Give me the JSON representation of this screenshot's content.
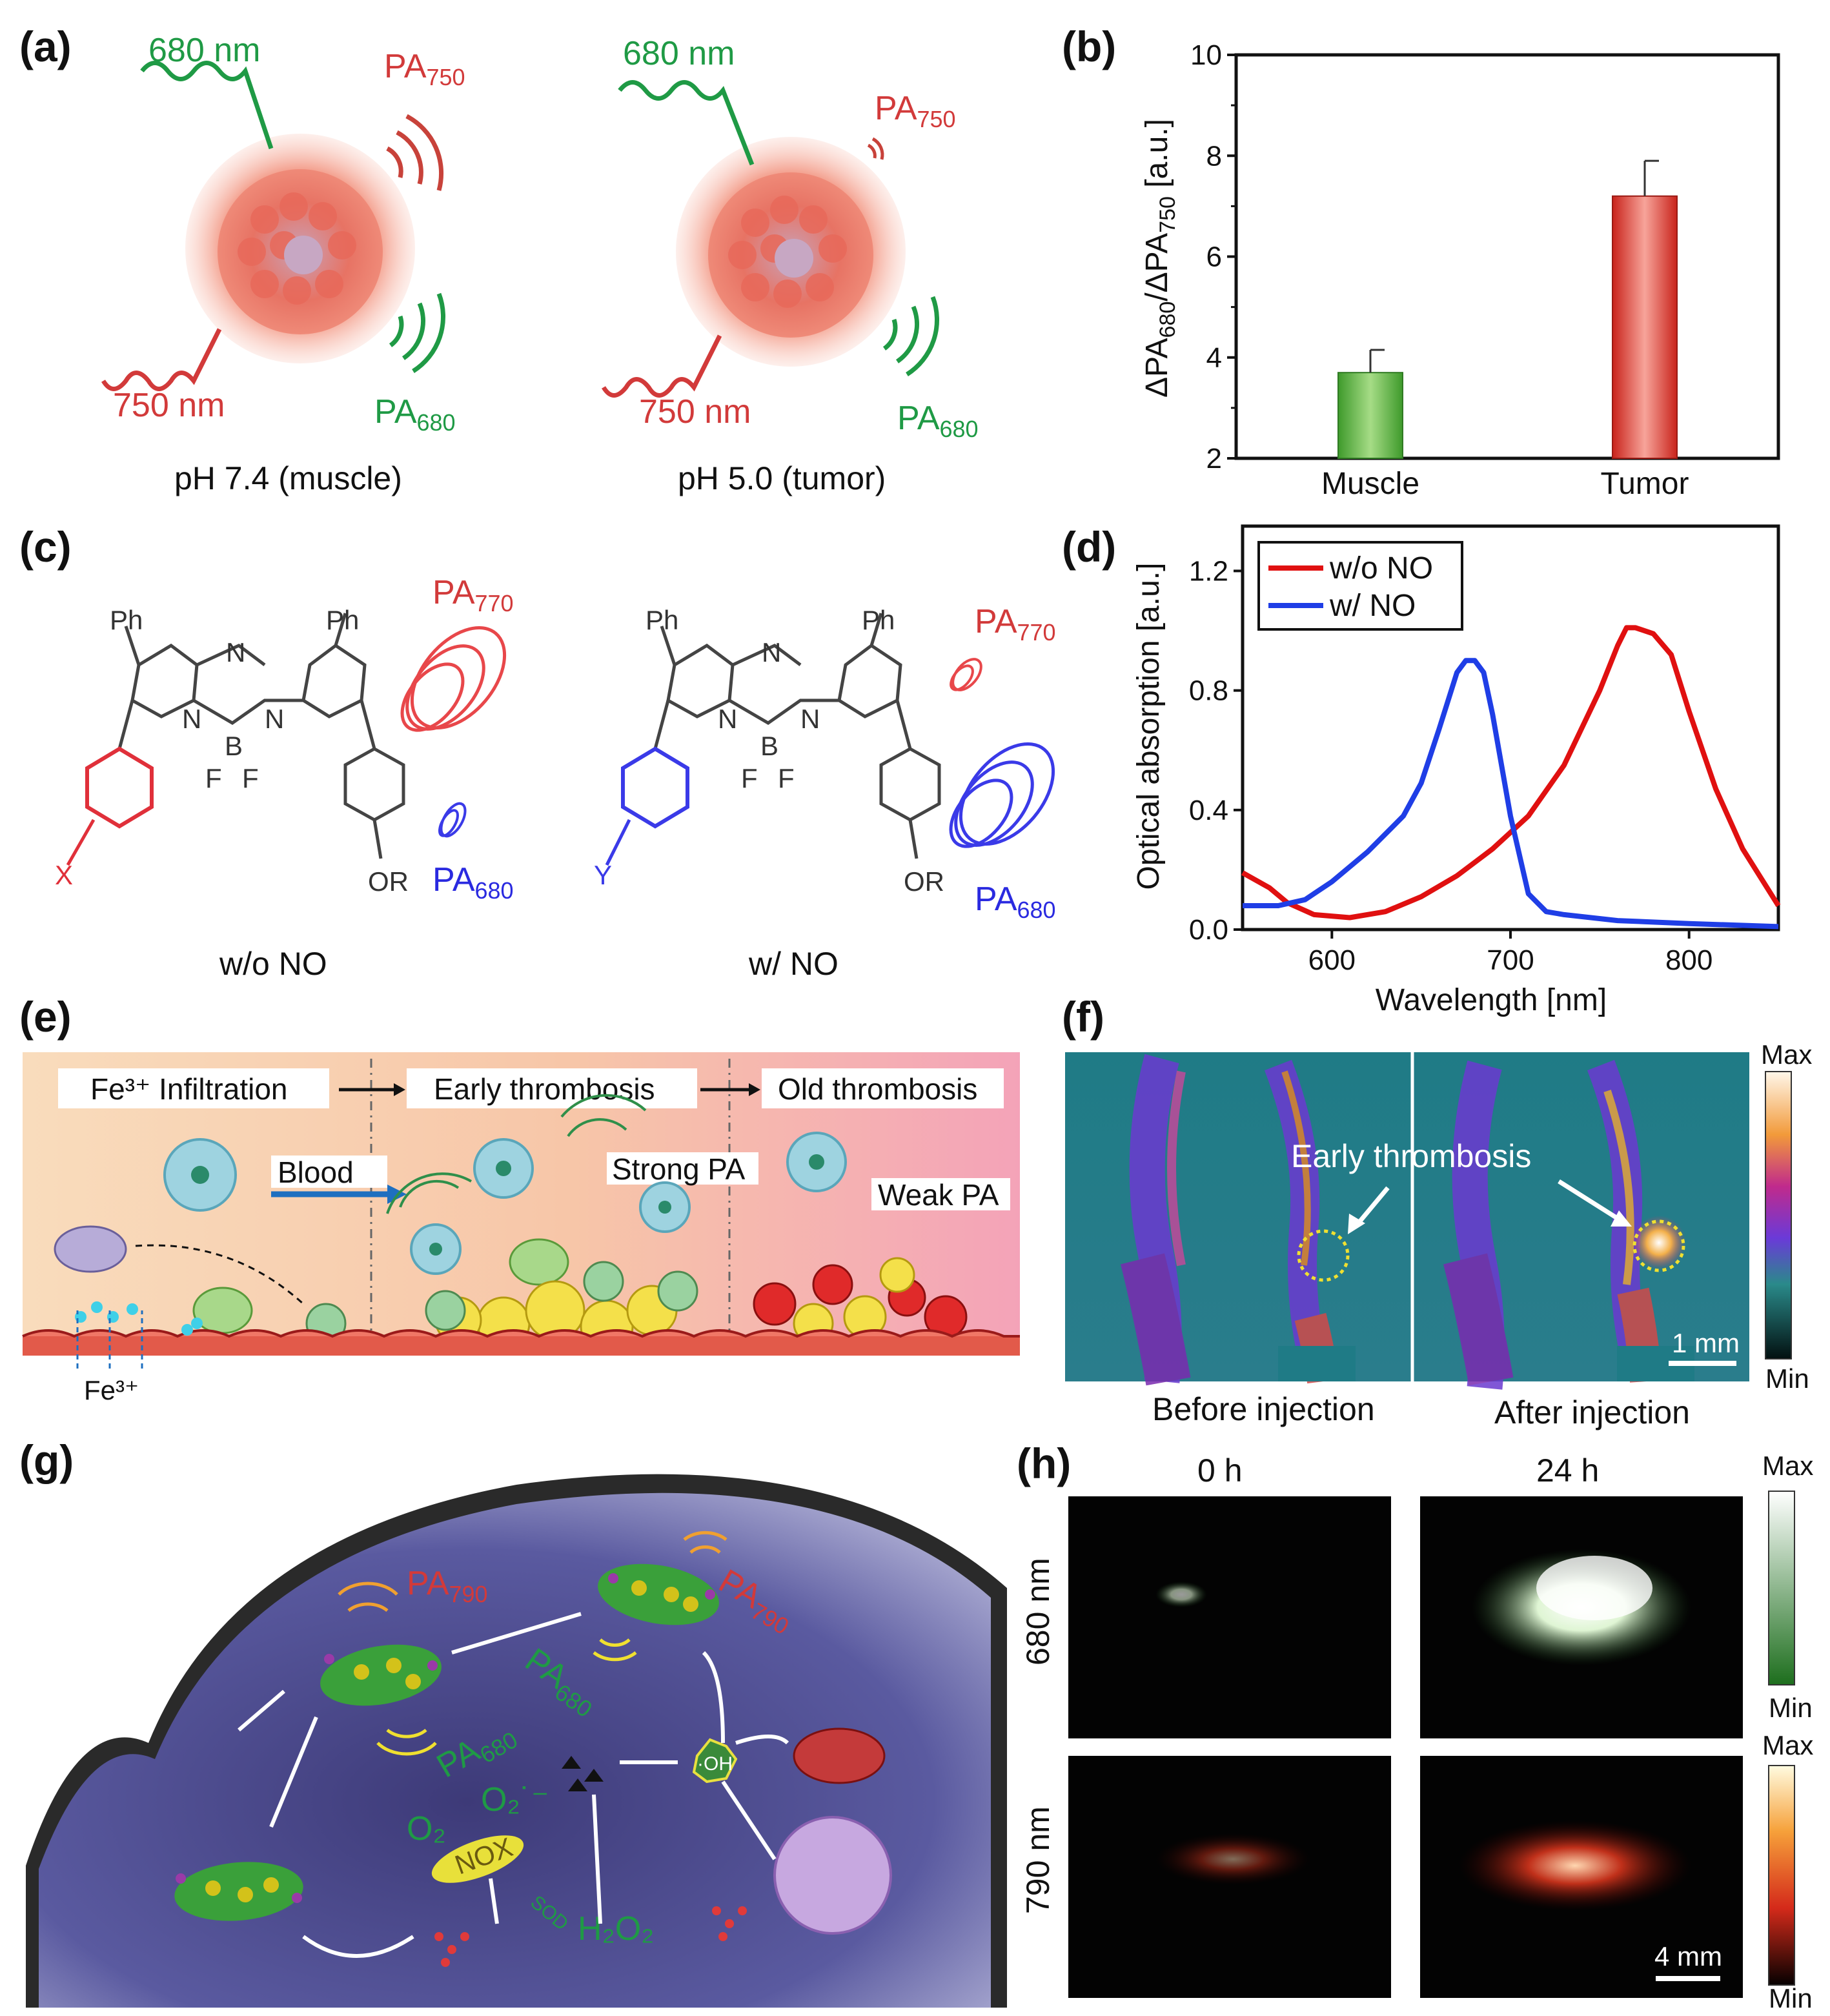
{
  "panels": {
    "a": {
      "label": "(a)",
      "left": {
        "ex": "680 nm",
        "ex2": "750 nm",
        "pa_top": "PA",
        "pa_top_sub": "750",
        "pa_bot": "PA",
        "pa_bot_sub": "680",
        "caption": "pH 7.4 (muscle)"
      },
      "right": {
        "ex": "680 nm",
        "ex2": "750 nm",
        "pa_top": "PA",
        "pa_top_sub": "750",
        "pa_bot": "PA",
        "pa_bot_sub": "680",
        "caption": "pH 5.0 (tumor)"
      }
    },
    "b": {
      "label": "(b)"
    },
    "c": {
      "label": "(c)",
      "left": {
        "pa_top": "PA",
        "pa_top_sub": "770",
        "pa_bot": "PA",
        "pa_bot_sub": "680",
        "caption": "w/o NO",
        "sub": "X"
      },
      "right": {
        "pa_top": "PA",
        "pa_top_sub": "770",
        "pa_bot": "PA",
        "pa_bot_sub": "680",
        "caption": "w/ NO",
        "sub": "Y"
      },
      "atoms": {
        "ph": "Ph",
        "n": "N",
        "b": "B",
        "f": "F",
        "or": "OR"
      }
    },
    "d": {
      "label": "(d)"
    },
    "e": {
      "label": "(e)",
      "stage1": "Fe³⁺ Infiltration",
      "stage2": "Early thrombosis",
      "stage3": "Old thrombosis",
      "blood": "Blood",
      "strong": "Strong PA",
      "weak": "Weak PA",
      "fe": "Fe³⁺"
    },
    "f": {
      "label": "(f)",
      "annotation": "Early thrombosis",
      "before": "Before injection",
      "after": "After injection",
      "scale": "1 mm",
      "cmax": "Max",
      "cmin": "Min"
    },
    "g": {
      "label": "(g)",
      "pa790a": "PA",
      "pa790a_sub": "790",
      "pa790b": "PA",
      "pa790b_sub": "790",
      "pa680a": "PA",
      "pa680a_sub": "680",
      "pa680b": "PA",
      "pa680b_sub": "680",
      "o2": "O₂",
      "o2m": "O₂˙⁻",
      "nox": "NOX",
      "sod": "SOD",
      "h2o2": "H₂O₂",
      "oh": "·OH"
    },
    "h": {
      "label": "(h)",
      "t0": "0 h",
      "t24": "24 h",
      "row1": "680 nm",
      "row2": "790 nm",
      "scale": "4 mm",
      "max1": "Max",
      "min1": "Min",
      "max2": "Max",
      "min2": "Min"
    }
  },
  "chart_data": [
    {
      "type": "bar",
      "panel": "b",
      "categories": [
        "Muscle",
        "Tumor"
      ],
      "values": [
        3.7,
        7.2
      ],
      "errors": [
        0.45,
        0.7
      ],
      "colors": [
        "#5cb33c",
        "#e0352b"
      ],
      "ylabel": "ΔPA680/ΔPA750 [a.u.]",
      "ylim": [
        2,
        10
      ],
      "yticks": [
        2,
        4,
        6,
        8,
        10
      ]
    },
    {
      "type": "line",
      "panel": "d",
      "xlabel": "Wavelength [nm]",
      "ylabel": "Optical absorption [a.u.]",
      "xlim": [
        550,
        850
      ],
      "ylim": [
        0,
        1.35
      ],
      "xticks": [
        600,
        700,
        800
      ],
      "yticks": [
        0.0,
        0.4,
        0.8,
        1.2
      ],
      "ytick_labels": [
        "0.0",
        "0.4",
        "0.8",
        "1.2"
      ],
      "legend_position": "top-left",
      "series": [
        {
          "name": "w/o NO",
          "color": "#e01010",
          "x": [
            550,
            565,
            575,
            590,
            610,
            630,
            650,
            670,
            690,
            710,
            730,
            750,
            760,
            765,
            770,
            780,
            790,
            800,
            815,
            830,
            850
          ],
          "y": [
            0.19,
            0.14,
            0.09,
            0.05,
            0.04,
            0.06,
            0.11,
            0.18,
            0.27,
            0.38,
            0.55,
            0.8,
            0.95,
            1.01,
            1.01,
            0.99,
            0.92,
            0.73,
            0.47,
            0.27,
            0.08
          ]
        },
        {
          "name": "w/ NO",
          "color": "#1f3ee6",
          "x": [
            550,
            570,
            585,
            600,
            620,
            640,
            650,
            660,
            670,
            675,
            680,
            685,
            690,
            700,
            710,
            720,
            730,
            760,
            800,
            850
          ],
          "y": [
            0.08,
            0.08,
            0.1,
            0.16,
            0.26,
            0.38,
            0.49,
            0.67,
            0.86,
            0.9,
            0.9,
            0.86,
            0.72,
            0.38,
            0.12,
            0.06,
            0.05,
            0.03,
            0.02,
            0.01
          ]
        }
      ]
    }
  ]
}
